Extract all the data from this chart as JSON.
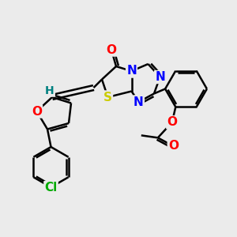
{
  "background_color": "#ebebeb",
  "atom_colors": {
    "C": "#000000",
    "H": "#008080",
    "N": "#0000ff",
    "O": "#ff0000",
    "S": "#cccc00",
    "Cl": "#00aa00"
  },
  "bond_color": "#000000",
  "bond_width": 1.8,
  "font_size_atoms": 11,
  "font_size_small": 10,
  "xlim": [
    0,
    10
  ],
  "ylim": [
    0,
    10
  ]
}
